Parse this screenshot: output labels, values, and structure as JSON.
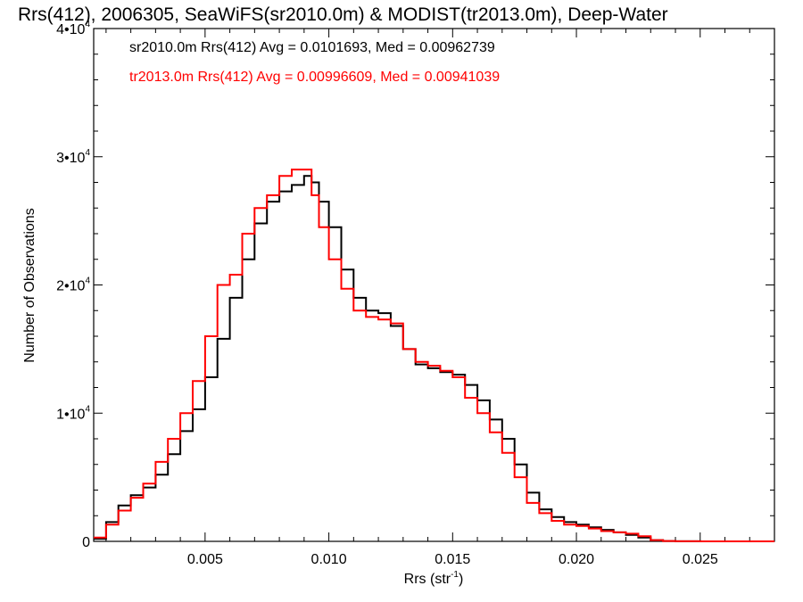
{
  "chart_data": {
    "type": "line",
    "title": "Rrs(412), 2006305, SeaWiFS(sr2010.0m) & MODIST(tr2013.0m), Deep-Water",
    "xlabel": "Rrs (str",
    "xlabel_sup": "-1",
    "xlabel_end": ")",
    "ylabel": "Number of Observations",
    "xlim": [
      0.0005,
      0.028
    ],
    "ylim": [
      0,
      40000
    ],
    "x_ticks": [
      {
        "value": 0.005,
        "label": "0.005"
      },
      {
        "value": 0.01,
        "label": "0.010"
      },
      {
        "value": 0.015,
        "label": "0.015"
      },
      {
        "value": 0.02,
        "label": "0.020"
      },
      {
        "value": 0.025,
        "label": "0.025"
      }
    ],
    "y_ticks": [
      {
        "value": 0,
        "label": "0",
        "sup": ""
      },
      {
        "value": 10000,
        "label": "1•10",
        "sup": "4"
      },
      {
        "value": 20000,
        "label": "2•10",
        "sup": "4"
      },
      {
        "value": 30000,
        "label": "3•10",
        "sup": "4"
      },
      {
        "value": 40000,
        "label": "4•10",
        "sup": "4"
      }
    ],
    "annotations": [
      {
        "text": "sr2010.0m Rrs(412) Avg = 0.0101693, Med = 0.00962739",
        "color": "#000000"
      },
      {
        "text": "tr2013.0m Rrs(412) Avg = 0.00996609, Med = 0.00941039",
        "color": "#ff0000"
      }
    ],
    "series": [
      {
        "color": "#000000",
        "x": [
          0.0005,
          0.001,
          0.0015,
          0.002,
          0.0025,
          0.003,
          0.0035,
          0.004,
          0.0045,
          0.005,
          0.0055,
          0.006,
          0.0065,
          0.007,
          0.0075,
          0.008,
          0.0085,
          0.009,
          0.0093,
          0.0096,
          0.01,
          0.0105,
          0.011,
          0.0115,
          0.012,
          0.0125,
          0.013,
          0.0135,
          0.014,
          0.0145,
          0.015,
          0.0155,
          0.016,
          0.0165,
          0.017,
          0.0175,
          0.018,
          0.0185,
          0.019,
          0.0195,
          0.02,
          0.0205,
          0.021,
          0.0215,
          0.022,
          0.0225,
          0.023,
          0.0235,
          0.024,
          0.025,
          0.026,
          0.027,
          0.028
        ],
        "values": [
          200,
          1500,
          2800,
          3600,
          4200,
          5200,
          6800,
          8600,
          10300,
          12800,
          15800,
          19000,
          22000,
          24800,
          26500,
          27300,
          27800,
          28500,
          28000,
          26500,
          24500,
          21200,
          19000,
          18000,
          17800,
          16800,
          15000,
          13800,
          13500,
          13200,
          13000,
          12200,
          11000,
          9500,
          8000,
          6000,
          3800,
          2500,
          1900,
          1500,
          1300,
          1100,
          900,
          700,
          500,
          300,
          100,
          30,
          10,
          0,
          0,
          0,
          0
        ]
      },
      {
        "color": "#ff0000",
        "x": [
          0.0005,
          0.001,
          0.0015,
          0.002,
          0.0025,
          0.003,
          0.0035,
          0.004,
          0.0045,
          0.005,
          0.0055,
          0.006,
          0.0065,
          0.007,
          0.0075,
          0.008,
          0.0085,
          0.009,
          0.0093,
          0.0096,
          0.01,
          0.0105,
          0.011,
          0.0115,
          0.012,
          0.0125,
          0.013,
          0.0135,
          0.014,
          0.0145,
          0.015,
          0.0155,
          0.016,
          0.0165,
          0.017,
          0.0175,
          0.018,
          0.0185,
          0.019,
          0.0195,
          0.02,
          0.0205,
          0.021,
          0.0215,
          0.022,
          0.0225,
          0.023,
          0.0235,
          0.024,
          0.025,
          0.026,
          0.027,
          0.028
        ],
        "values": [
          300,
          1300,
          2400,
          3400,
          4500,
          6200,
          8000,
          10000,
          12500,
          16000,
          20000,
          20800,
          24000,
          26000,
          27000,
          28500,
          29000,
          29000,
          27000,
          24500,
          22000,
          19700,
          18000,
          17500,
          17300,
          17000,
          15000,
          14000,
          13700,
          13300,
          12800,
          11200,
          10000,
          8500,
          6900,
          5000,
          3000,
          2200,
          1600,
          1300,
          1200,
          1000,
          800,
          700,
          600,
          400,
          100,
          30,
          10,
          0,
          0,
          0,
          0
        ]
      }
    ]
  }
}
